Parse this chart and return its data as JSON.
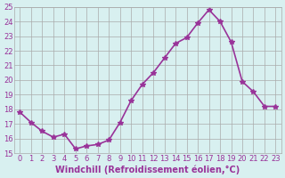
{
  "x": [
    0,
    1,
    2,
    3,
    4,
    5,
    6,
    7,
    8,
    9,
    10,
    11,
    12,
    13,
    14,
    15,
    16,
    17,
    18,
    19,
    20,
    21,
    22,
    23
  ],
  "y": [
    17.8,
    17.1,
    16.5,
    16.1,
    16.3,
    15.3,
    15.5,
    15.6,
    15.9,
    17.1,
    18.6,
    19.7,
    20.5,
    21.5,
    22.5,
    22.9,
    23.9,
    24.8,
    24.0,
    22.6,
    19.9,
    19.2,
    18.2,
    18.2
  ],
  "line_color": "#993399",
  "marker": "*",
  "marker_size": 4,
  "bg_color": "#d8f0f0",
  "grid_color": "#aaaaaa",
  "xlabel": "Windchill (Refroidissement éolien,°C)",
  "ylim": [
    15,
    25
  ],
  "xlim_min": -0.5,
  "xlim_max": 23.5,
  "yticks": [
    15,
    16,
    17,
    18,
    19,
    20,
    21,
    22,
    23,
    24,
    25
  ],
  "xticks": [
    0,
    1,
    2,
    3,
    4,
    5,
    6,
    7,
    8,
    9,
    10,
    11,
    12,
    13,
    14,
    15,
    16,
    17,
    18,
    19,
    20,
    21,
    22,
    23
  ],
  "tick_fontsize": 6,
  "xlabel_fontsize": 7,
  "line_width": 1.2
}
